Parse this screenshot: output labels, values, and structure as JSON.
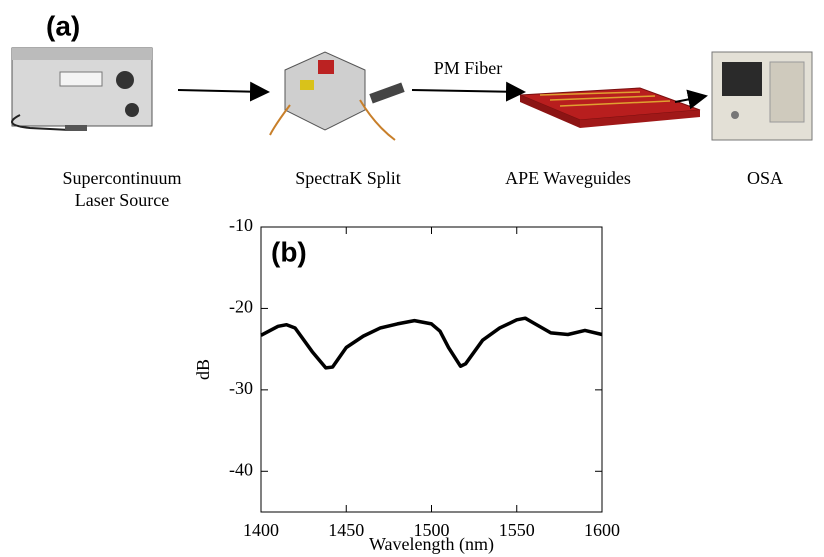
{
  "panel_a": {
    "panel_label": "(a)",
    "link_label": "PM Fiber",
    "components": [
      {
        "label": [
          "Supercontinuum",
          "Laser Source"
        ]
      },
      {
        "label": [
          "SpectraK Split"
        ]
      },
      {
        "label": [
          "APE Waveguides"
        ]
      },
      {
        "label": [
          "OSA"
        ]
      }
    ]
  },
  "chart_data": {
    "type": "line",
    "annotation": "(b)",
    "xlabel": "Wavelength (nm)",
    "ylabel": "dB",
    "x": [
      1400,
      1410,
      1415,
      1420,
      1430,
      1438,
      1442,
      1450,
      1460,
      1470,
      1480,
      1490,
      1500,
      1505,
      1510,
      1517,
      1520,
      1530,
      1540,
      1550,
      1555,
      1560,
      1570,
      1580,
      1590,
      1600
    ],
    "series": [
      {
        "color": "#000000",
        "values": [
          -23.3,
          -22.2,
          -22.0,
          -22.4,
          -25.3,
          -27.3,
          -27.2,
          -24.8,
          -23.4,
          -22.4,
          -21.9,
          -21.5,
          -21.9,
          -22.8,
          -24.8,
          -27.1,
          -26.8,
          -23.9,
          -22.4,
          -21.4,
          -21.2,
          -21.8,
          -23.0,
          -23.2,
          -22.7,
          -23.2
        ]
      }
    ],
    "xlim": [
      1400,
      1600
    ],
    "xticks": [
      1400,
      1450,
      1500,
      1550,
      1600
    ],
    "ylim": [
      -45,
      -10
    ],
    "yticks": [
      -10,
      -20,
      -30,
      -40
    ]
  }
}
